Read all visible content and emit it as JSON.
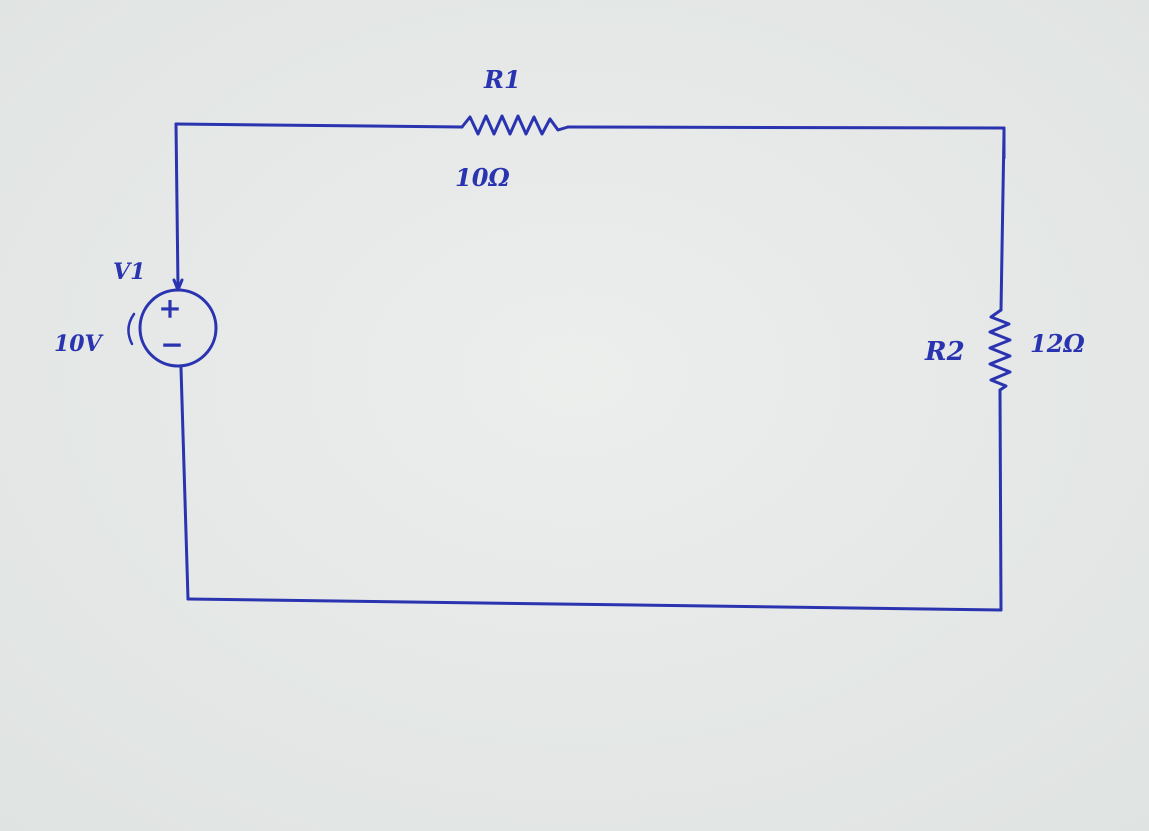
{
  "circuit": {
    "source": {
      "name": "V1",
      "value": "10V",
      "plus_sign": "+",
      "minus_sign": "−"
    },
    "resistor_1": {
      "name": "R1",
      "value": "10Ω"
    },
    "resistor_2": {
      "name": "R2",
      "value": "12Ω"
    }
  },
  "colors": {
    "paper": "#e6e9e7",
    "ink": "#2a33b0"
  }
}
